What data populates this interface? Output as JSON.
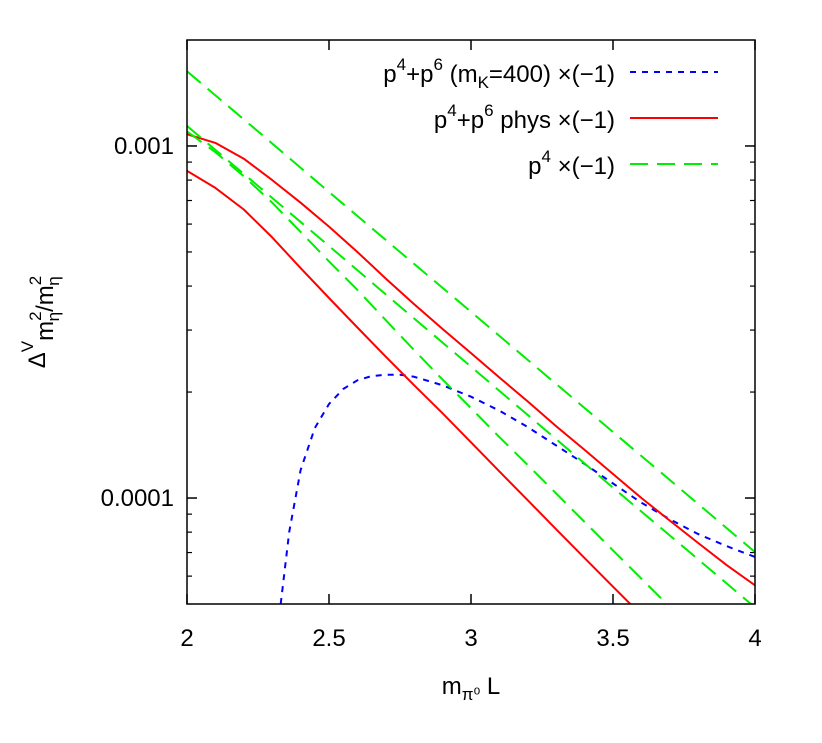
{
  "chart_data": {
    "type": "line",
    "xlabel": "m",
    "xlabel_sub": "π⁰",
    "xlabel_tail": " L",
    "ylabel_parts": {
      "delta": "Δ",
      "sup_v": "V",
      "m": "m",
      "sup_2": "2",
      "sub_eta": "η",
      "slash": "/m",
      "sup_2b": "2",
      "sub_eta_b": "η"
    },
    "x_scale": "linear",
    "y_scale": "log",
    "xlim": [
      2,
      4
    ],
    "ylim": [
      5e-05,
      0.002
    ],
    "x_ticks": [
      {
        "value": 2,
        "label": "2"
      },
      {
        "value": 2.5,
        "label": "2.5"
      },
      {
        "value": 3,
        "label": "3"
      },
      {
        "value": 3.5,
        "label": "3.5"
      },
      {
        "value": 4,
        "label": "4"
      }
    ],
    "y_ticks": [
      {
        "value": 0.001,
        "label": "0.001"
      },
      {
        "value": 0.0001,
        "label": "0.0001"
      }
    ],
    "grid": false,
    "legend_position": "top-right",
    "series": [
      {
        "name": "p4+p6 (mK=400) ×(−1)",
        "legend": {
          "p": "p",
          "s1": "4",
          "plus": "+p",
          "s2": "6",
          "open": " (m",
          "sub": "K",
          "close": "=400) ×(−1)"
        },
        "color": "#0000ff",
        "dash": "blue-dotted",
        "segments": [
          {
            "x": [
              2.33,
              2.36,
              2.4,
              2.45,
              2.5,
              2.55,
              2.6,
              2.65,
              2.7,
              2.75,
              2.8,
              2.85,
              2.9,
              3.0,
              3.1,
              3.2,
              3.3,
              3.4,
              3.5,
              3.6,
              3.7,
              3.8,
              3.9,
              4.0
            ],
            "y": [
              5e-05,
              8e-05,
              0.00012,
              0.000158,
              0.000185,
              0.000204,
              0.000216,
              0.000222,
              0.000224,
              0.000224,
              0.000221,
              0.000215,
              0.000209,
              0.000194,
              0.000177,
              0.000159,
              0.000141,
              0.000125,
              0.00011,
              9.7e-05,
              8.7e-05,
              7.9e-05,
              7.3e-05,
              6.8e-05
            ]
          }
        ]
      },
      {
        "name": "p4+p6 phys ×(−1)",
        "legend": {
          "p": "p",
          "s1": "4",
          "plus": "+p",
          "s2": "6",
          "tail": " phys ×(−1)"
        },
        "color": "#ff0000",
        "dash": "solid",
        "segments": [
          {
            "x": [
              2.0,
              2.1,
              2.2,
              2.3,
              2.4,
              2.5,
              2.6,
              2.7,
              2.8,
              2.9,
              3.0,
              3.1,
              3.2,
              3.3,
              3.4,
              3.5,
              3.6,
              3.7,
              3.8,
              3.9,
              4.0
            ],
            "y": [
              0.00108,
              0.00102,
              0.00092,
              0.0008,
              0.00069,
              0.00059,
              0.0005,
              0.00042,
              0.000355,
              0.000302,
              0.000258,
              0.00022,
              0.000188,
              0.00016,
              0.000137,
              0.000117,
              0.0001,
              8.63e-05,
              7.45e-05,
              6.45e-05,
              5.65e-05
            ]
          },
          {
            "x": [
              2.0,
              2.1,
              2.2,
              2.3,
              2.4,
              2.5,
              2.6,
              2.7,
              2.8,
              2.9,
              3.0,
              3.1,
              3.2,
              3.3,
              3.4,
              3.5,
              3.6,
              3.7,
              3.8,
              3.85
            ],
            "y": [
              0.00085,
              0.00076,
              0.00066,
              0.00055,
              0.00045,
              0.00037,
              0.000305,
              0.000252,
              0.000209,
              0.000174,
              0.000144,
              0.000119,
              9.85e-05,
              8.15e-05,
              6.75e-05,
              5.6e-05,
              4.65e-05,
              3.85e-05,
              3.2e-05,
              2.93e-05
            ]
          }
        ]
      },
      {
        "name": "p4 ×(−1)",
        "legend": {
          "p": "p",
          "s1": "4",
          "tail": " ×(−1)"
        },
        "color": "#00ee00",
        "dash": "green-dashed",
        "segments": [
          {
            "x": [
              2.0,
              2.25,
              2.5,
              2.75,
              3.0,
              3.25,
              3.5,
              3.75,
              4.0
            ],
            "y": [
              0.00163,
              0.0011,
              0.00074,
              0.0005,
              0.000338,
              0.000228,
              0.000154,
              0.000104,
              7.02e-05
            ]
          },
          {
            "x": [
              2.0,
              2.25,
              2.5,
              2.75,
              3.0,
              3.25,
              3.5,
              3.75,
              4.0
            ],
            "y": [
              0.00114,
              0.00077,
              0.00052,
              0.00035,
              0.000236,
              0.000159,
              0.000107,
              7.24e-05,
              4.89e-05
            ]
          },
          {
            "x": [
              2.0,
              2.1,
              2.2,
              2.3,
              2.4,
              2.5,
              2.6,
              2.7,
              2.8,
              2.9,
              3.0,
              3.1,
              3.2,
              3.3,
              3.4,
              3.5,
              3.6,
              3.7,
              3.8,
              3.9
            ],
            "y": [
              0.0011,
              0.00096,
              0.00082,
              0.00069,
              0.00057,
              0.00047,
              0.00039,
              0.00032,
              0.000263,
              0.000217,
              0.00018,
              0.000149,
              0.000124,
              0.000103,
              8.55e-05,
              7.1e-05,
              5.9e-05,
              4.9e-05,
              4.07e-05,
              3.38e-05
            ]
          }
        ]
      }
    ]
  }
}
